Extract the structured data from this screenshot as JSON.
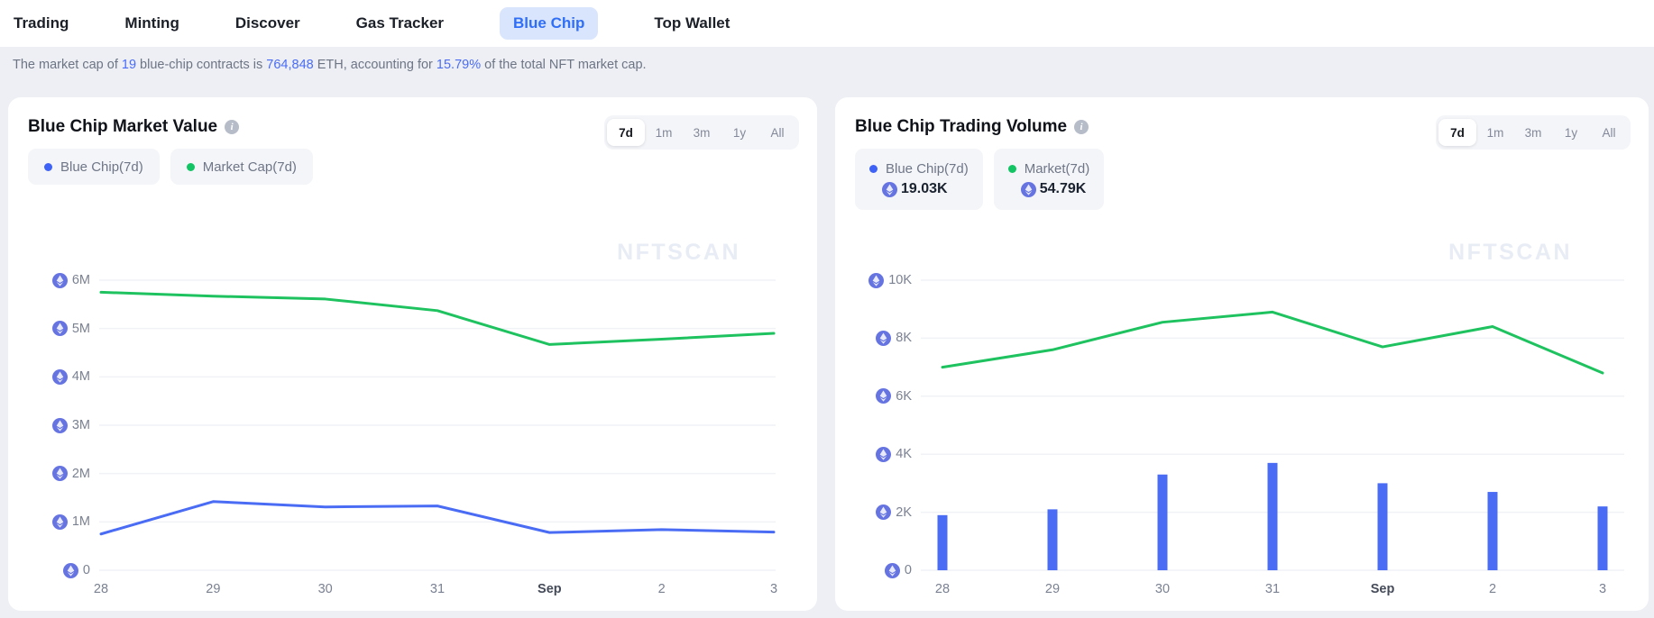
{
  "nav": {
    "items": [
      {
        "label": "Trading",
        "active": false
      },
      {
        "label": "Minting",
        "active": false
      },
      {
        "label": "Discover",
        "active": false
      },
      {
        "label": "Gas Tracker",
        "active": false
      },
      {
        "label": "Blue Chip",
        "active": true
      },
      {
        "label": "Top Wallet",
        "active": false
      }
    ]
  },
  "subtitle": {
    "parts": [
      {
        "text": "The market cap of ",
        "highlight": false
      },
      {
        "text": "19",
        "highlight": true
      },
      {
        "text": " blue-chip contracts is ",
        "highlight": false
      },
      {
        "text": "764,848",
        "highlight": true
      },
      {
        "text": " ETH, accounting for ",
        "highlight": false
      },
      {
        "text": "15.79%",
        "highlight": true
      },
      {
        "text": " of the total NFT market cap.",
        "highlight": false
      }
    ]
  },
  "colors": {
    "blue": "#4a6cf5",
    "green": "#1ec25f",
    "legend_dot_blue": "#3f62f6",
    "legend_dot_green": "#13c464",
    "eth_icon": "#6674e2",
    "gridline": "#f0f2f6",
    "nav_active_bg": "#d9e4fd",
    "nav_active_text": "#2f6ff7"
  },
  "cards": [
    {
      "title": "Blue Chip Market Value",
      "watermark": "NFTSCAN",
      "time_ranges": [
        "7d",
        "1m",
        "3m",
        "1y",
        "All"
      ],
      "active_range": "7d",
      "legend": [
        {
          "name": "Blue Chip(7d)",
          "color": "#3f62f6",
          "value": null
        },
        {
          "name": "Market Cap(7d)",
          "color": "#13c464",
          "value": null
        }
      ]
    },
    {
      "title": "Blue Chip Trading Volume",
      "watermark": "NFTSCAN",
      "time_ranges": [
        "7d",
        "1m",
        "3m",
        "1y",
        "All"
      ],
      "active_range": "7d",
      "legend": [
        {
          "name": "Blue Chip(7d)",
          "color": "#3f62f6",
          "value": "19.03K"
        },
        {
          "name": "Market(7d)",
          "color": "#13c464",
          "value": "54.79K"
        }
      ]
    }
  ],
  "chart_data": [
    {
      "type": "line",
      "title": "Blue Chip Market Value",
      "unit": "ETH",
      "categories": [
        "28",
        "29",
        "30",
        "31",
        "Sep",
        "2",
        "3"
      ],
      "bold_category": "Sep",
      "y_ticks": [
        "0",
        "1M",
        "2M",
        "3M",
        "4M",
        "5M",
        "6M"
      ],
      "y_tick_values": [
        0,
        1000000,
        2000000,
        3000000,
        4000000,
        5000000,
        6000000
      ],
      "ylim": [
        0,
        6000000
      ],
      "grid": true,
      "legend_position": "top-left",
      "series": [
        {
          "name": "Blue Chip(7d)",
          "type": "line",
          "color": "#4a6cf5",
          "values": [
            750000,
            1420000,
            1310000,
            1330000,
            780000,
            840000,
            790000
          ]
        },
        {
          "name": "Market Cap(7d)",
          "type": "line",
          "color": "#1ec25f",
          "values": [
            5750000,
            5670000,
            5610000,
            5370000,
            4670000,
            4780000,
            4900000
          ]
        }
      ]
    },
    {
      "type": "bar",
      "title": "Blue Chip Trading Volume",
      "unit": "ETH",
      "categories": [
        "28",
        "29",
        "30",
        "31",
        "Sep",
        "2",
        "3"
      ],
      "bold_category": "Sep",
      "y_ticks": [
        "0",
        "2K",
        "4K",
        "6K",
        "8K",
        "10K"
      ],
      "y_tick_values": [
        0,
        2000,
        4000,
        6000,
        8000,
        10000
      ],
      "ylim": [
        0,
        10000
      ],
      "grid": true,
      "legend_position": "top-left",
      "series": [
        {
          "name": "Blue Chip(7d)",
          "type": "bar",
          "color": "#4a6cf5",
          "values": [
            1900,
            2100,
            3300,
            3700,
            3000,
            2700,
            2200
          ]
        },
        {
          "name": "Market(7d)",
          "type": "line",
          "color": "#1ec25f",
          "values": [
            7000,
            7600,
            8550,
            8900,
            7700,
            8400,
            6800
          ]
        }
      ]
    }
  ]
}
